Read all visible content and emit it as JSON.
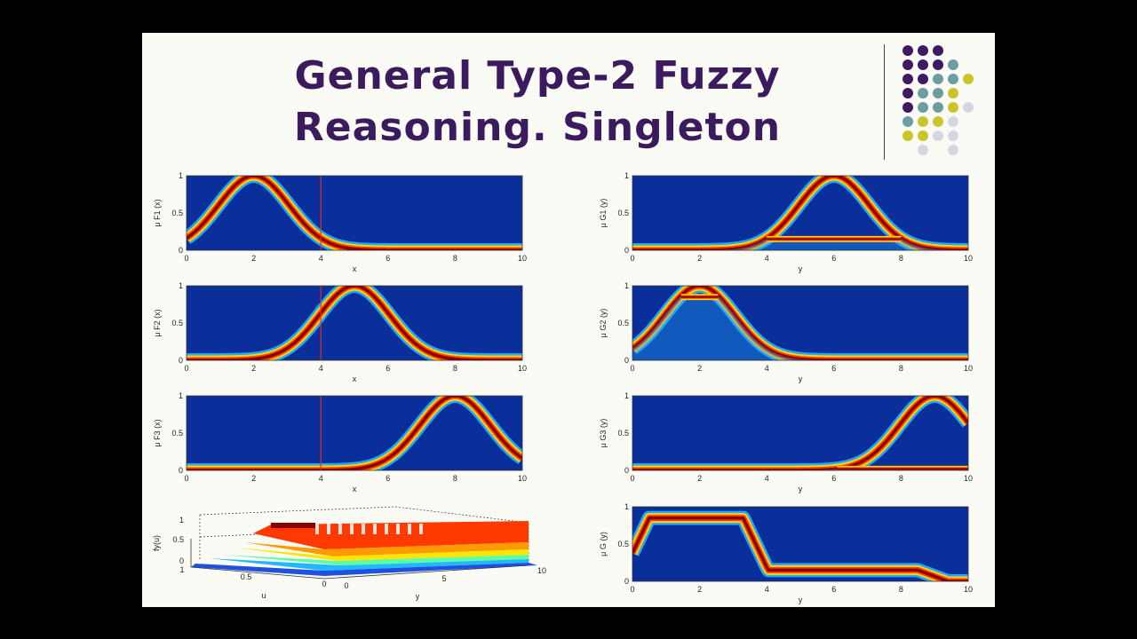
{
  "slide": {
    "title_line1": "General Type-2 Fuzzy",
    "title_line2": "Reasoning. Singleton"
  },
  "decoration": {
    "dot_colors": [
      "#3d1a63",
      "#6b9ea0",
      "#c9c62c",
      "#d6d6e2"
    ]
  },
  "colors": {
    "plot_background": "#0a2f9a",
    "surface_core": "#8b0000",
    "surface_mid": "#ff4500",
    "surface_edge": "#ffd500",
    "surface_outer": "#21a8ff",
    "input_line": "#e0301e"
  },
  "chart_data": [
    {
      "type": "heatmap",
      "name": "rule-1-antecedent",
      "ylabel": "μ F1 (x)",
      "xlabel": "x",
      "x_range": [
        0,
        10
      ],
      "y_range": [
        0,
        1
      ],
      "xticks": [
        "0",
        "2",
        "4",
        "6",
        "8",
        "10"
      ],
      "yticks": [
        "0",
        "0.5",
        "1"
      ],
      "shape": "gaussian",
      "center": 2,
      "input_x": 4
    },
    {
      "type": "heatmap",
      "name": "rule-1-consequent",
      "ylabel": "μ G1 (y)",
      "xlabel": "y",
      "x_range": [
        0,
        10
      ],
      "y_range": [
        0,
        1
      ],
      "xticks": [
        "0",
        "2",
        "4",
        "6",
        "8",
        "10"
      ],
      "yticks": [
        "0",
        "0.5",
        "1"
      ],
      "shape": "gaussian",
      "center": 6,
      "fired_level": 0.15
    },
    {
      "type": "heatmap",
      "name": "rule-2-antecedent",
      "ylabel": "μ F2 (x)",
      "xlabel": "x",
      "x_range": [
        0,
        10
      ],
      "y_range": [
        0,
        1
      ],
      "xticks": [
        "0",
        "2",
        "4",
        "6",
        "8",
        "10"
      ],
      "yticks": [
        "0",
        "0.5",
        "1"
      ],
      "shape": "gaussian",
      "center": 5,
      "input_x": 4
    },
    {
      "type": "heatmap",
      "name": "rule-2-consequent",
      "ylabel": "μ G2 (y)",
      "xlabel": "y",
      "x_range": [
        0,
        10
      ],
      "y_range": [
        0,
        1
      ],
      "xticks": [
        "0",
        "2",
        "4",
        "6",
        "8",
        "10"
      ],
      "yticks": [
        "0",
        "0.5",
        "1"
      ],
      "shape": "gaussian",
      "center": 2,
      "fired_level": 0.85
    },
    {
      "type": "heatmap",
      "name": "rule-3-antecedent",
      "ylabel": "μ F3 (x)",
      "xlabel": "x",
      "x_range": [
        0,
        10
      ],
      "y_range": [
        0,
        1
      ],
      "xticks": [
        "0",
        "2",
        "4",
        "6",
        "8",
        "10"
      ],
      "yticks": [
        "0",
        "0.5",
        "1"
      ],
      "shape": "gaussian",
      "center": 8,
      "input_x": 4
    },
    {
      "type": "heatmap",
      "name": "rule-3-consequent",
      "ylabel": "μ G3 (y)",
      "xlabel": "y",
      "x_range": [
        0,
        10
      ],
      "y_range": [
        0,
        1
      ],
      "xticks": [
        "0",
        "2",
        "4",
        "6",
        "8",
        "10"
      ],
      "yticks": [
        "0",
        "0.5",
        "1"
      ],
      "shape": "gaussian",
      "center": 9,
      "fired_level": 0.02
    },
    {
      "type": "area",
      "name": "aggregated-surface-3d",
      "zlabel": "fy(u)",
      "xlabel": "u",
      "ylabel": "y",
      "zticks": [
        "0",
        "0.5",
        "1"
      ],
      "uticks": [
        "1",
        "0.5",
        "0"
      ],
      "yticks": [
        "0",
        "5",
        "10"
      ]
    },
    {
      "type": "heatmap",
      "name": "aggregated-output",
      "ylabel": "μ G (y)",
      "xlabel": "y",
      "x_range": [
        0,
        10
      ],
      "y_range": [
        0,
        1
      ],
      "xticks": [
        "0",
        "2",
        "4",
        "6",
        "8",
        "10"
      ],
      "yticks": [
        "0",
        "0.5",
        "1"
      ],
      "shape": "aggregated",
      "plateau": [
        [
          0.5,
          3.3,
          0.85
        ],
        [
          4,
          8.5,
          0.15
        ]
      ]
    }
  ]
}
